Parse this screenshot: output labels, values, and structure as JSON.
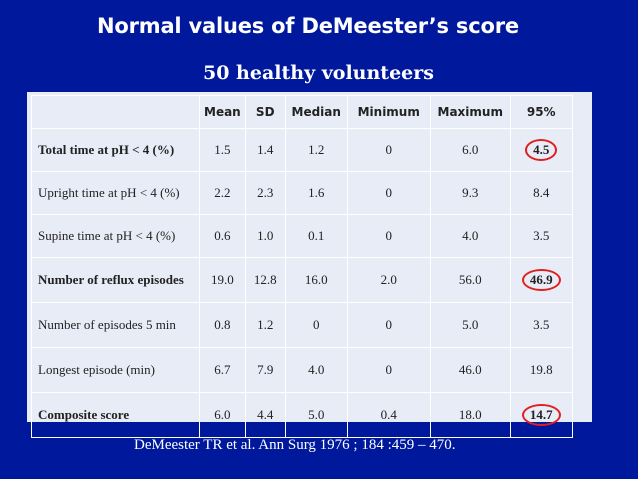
{
  "title": "Normal values of DeMeester’s score",
  "subtitle": "50 healthy volunteers",
  "table": {
    "headers": [
      "",
      "Mean",
      "SD",
      "Median",
      "Minimum",
      "Maximum",
      "95%"
    ],
    "rows": [
      {
        "label": "Total time at pH < 4 (%)",
        "mean": "1.5",
        "sd": "1.4",
        "median": "1.2",
        "minimum": "0",
        "maximum": "6.0",
        "p95": "4.5",
        "bold": true,
        "circled": true
      },
      {
        "label": "Upright time at pH < 4 (%)",
        "mean": "2.2",
        "sd": "2.3",
        "median": "1.6",
        "minimum": "0",
        "maximum": "9.3",
        "p95": "8.4",
        "bold": false,
        "circled": false
      },
      {
        "label": "Supine time at pH < 4 (%)",
        "mean": "0.6",
        "sd": "1.0",
        "median": "0.1",
        "minimum": "0",
        "maximum": "4.0",
        "p95": "3.5",
        "bold": false,
        "circled": false
      },
      {
        "label": "Number of reflux episodes",
        "mean": "19.0",
        "sd": "12.8",
        "median": "16.0",
        "minimum": "2.0",
        "maximum": "56.0",
        "p95": "46.9",
        "bold": true,
        "circled": true
      },
      {
        "label": "Number of episodes 5 min",
        "mean": "0.8",
        "sd": "1.2",
        "median": "0",
        "minimum": "0",
        "maximum": "5.0",
        "p95": "3.5",
        "bold": false,
        "circled": false
      },
      {
        "label": "Longest episode (min)",
        "mean": "6.7",
        "sd": "7.9",
        "median": "4.0",
        "minimum": "0",
        "maximum": "46.0",
        "p95": "19.8",
        "bold": false,
        "circled": false
      },
      {
        "label": "Composite score",
        "mean": "6.0",
        "sd": "4.4",
        "median": "5.0",
        "minimum": "0.4",
        "maximum": "18.0",
        "p95": "14.7",
        "bold": true,
        "circled": true
      }
    ]
  },
  "citation": "DeMeester TR et al. Ann Surg 1976 ; 184 :459 – 470.",
  "colors": {
    "background": "#00189c",
    "panel": "#e7ecf7",
    "circle": "#e02020"
  }
}
